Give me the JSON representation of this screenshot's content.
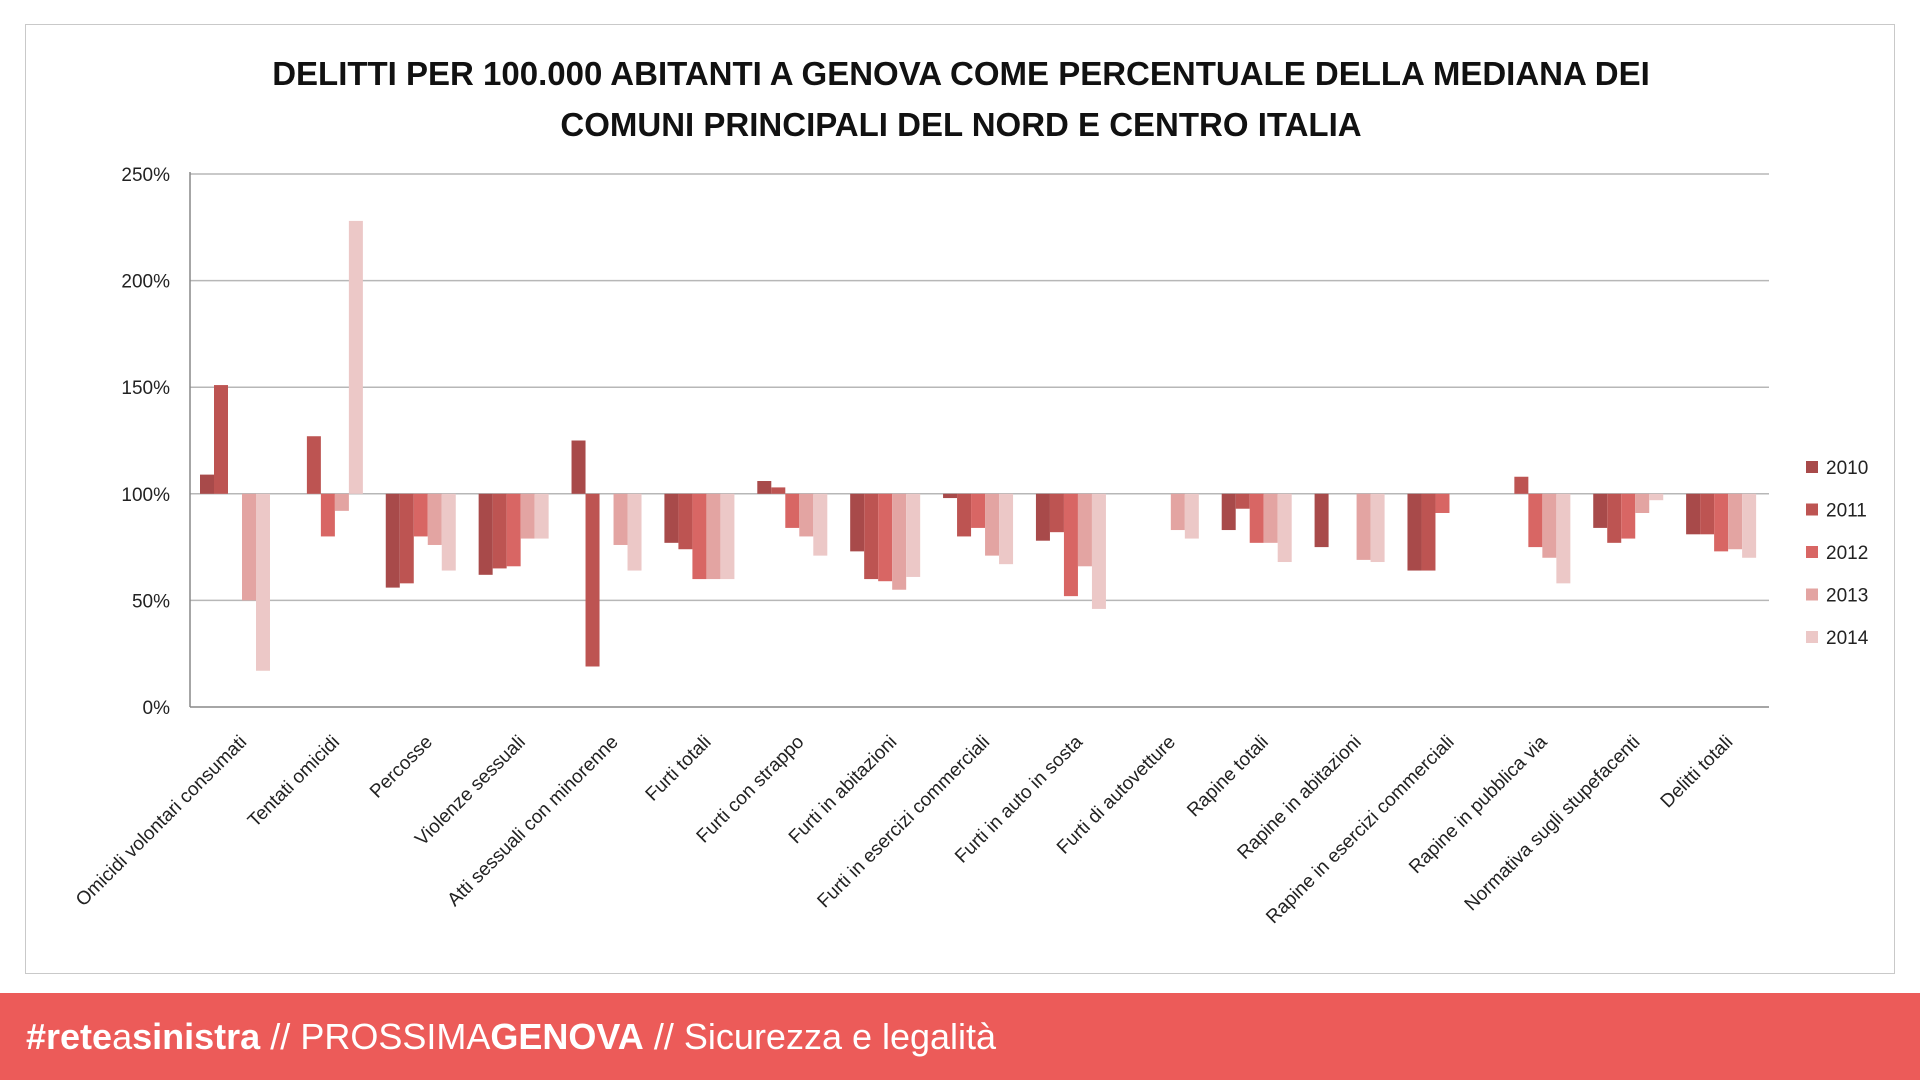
{
  "chart_data": {
    "type": "bar",
    "title_lines": [
      "DELITTI PER 100.000 ABITANTI A GENOVA COME PERCENTUALE DELLA MEDIANA DEI",
      "COMUNI PRINCIPALI DEL NORD E CENTRO ITALIA"
    ],
    "xlabel": "",
    "ylabel": "",
    "ylim": [
      0,
      250
    ],
    "yticks": [
      0,
      50,
      100,
      150,
      200,
      250
    ],
    "ytick_labels": [
      "0%",
      "50%",
      "100%",
      "150%",
      "200%",
      "250%"
    ],
    "baseline": 100,
    "grid": true,
    "legend_position": "right",
    "categories": [
      "Omicidi volontari consumati",
      "Tentati omicidi",
      "Percosse",
      "Violenze sessuali",
      "Atti sessuali con minorenne",
      "Furti totali",
      "Furti con strappo",
      "Furti in abitazioni",
      "Furti in esercizi commerciali",
      "Furti in auto in sosta",
      "Furti di autovetture",
      "Rapine totali",
      "Rapine in abitazioni",
      "Rapine in esercizi commerciali",
      "Rapine in pubblica via",
      "Normativa sugli stupefacenti",
      "Delitti totali"
    ],
    "series": [
      {
        "name": "2010",
        "color": "#a84a4a",
        "values": [
          109,
          null,
          56,
          62,
          125,
          77,
          106,
          73,
          98,
          78,
          null,
          83,
          75,
          64,
          null,
          84,
          81
        ]
      },
      {
        "name": "2011",
        "color": "#bd5452",
        "values": [
          151,
          127,
          58,
          65,
          19,
          74,
          103,
          60,
          80,
          82,
          null,
          93,
          null,
          64,
          108,
          77,
          81
        ]
      },
      {
        "name": "2012",
        "color": "#d86664",
        "values": [
          null,
          80,
          80,
          66,
          null,
          60,
          84,
          59,
          84,
          52,
          null,
          77,
          null,
          91,
          75,
          79,
          73
        ]
      },
      {
        "name": "2013",
        "color": "#e3a4a2",
        "values": [
          50,
          92,
          76,
          79,
          76,
          60,
          80,
          55,
          71,
          66,
          83,
          77,
          69,
          null,
          70,
          91,
          74
        ]
      },
      {
        "name": "2014",
        "color": "#ecc8c7",
        "values": [
          17,
          228,
          64,
          79,
          64,
          60,
          71,
          61,
          67,
          46,
          79,
          68,
          68,
          null,
          58,
          97,
          70
        ]
      }
    ]
  },
  "footer": {
    "hashtag_rete": "#rete",
    "hashtag_a": "a",
    "hashtag_sinistra": "sinistra",
    "sep1": "//",
    "prossima": "PROSSIMA",
    "genova": "GENOVA",
    "sep2": "//",
    "subtitle": "Sicurezza e legalità"
  }
}
